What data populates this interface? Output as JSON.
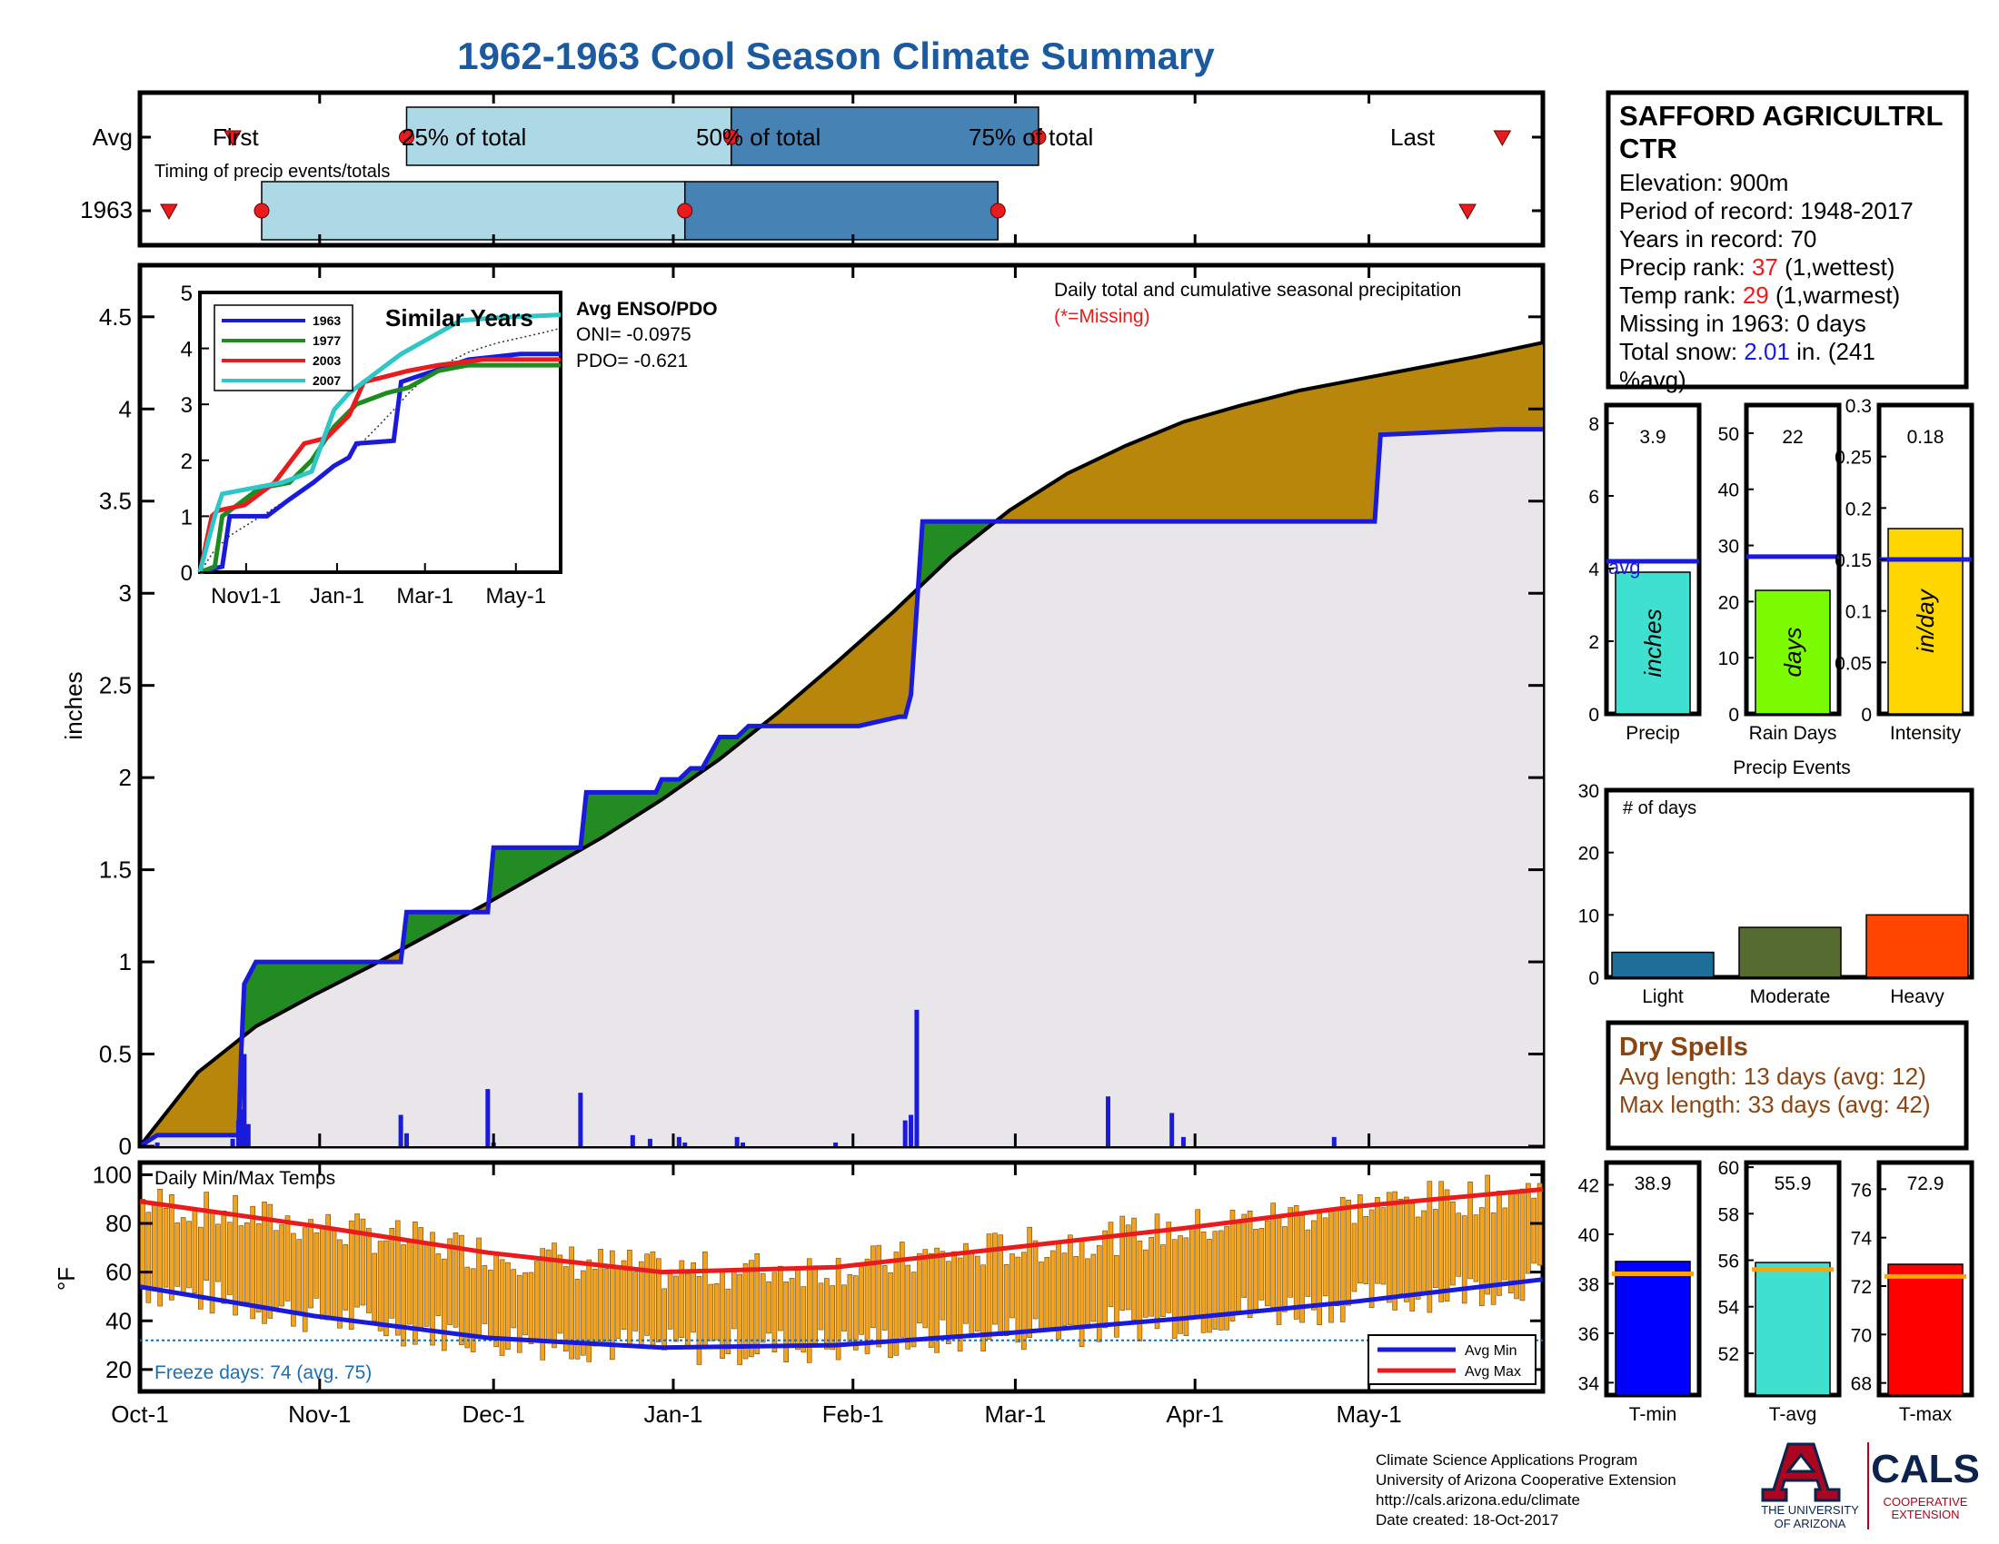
{
  "title": "1962-1963 Cool Season Climate Summary",
  "station": {
    "name_line1": "SAFFORD AGRICULTRL",
    "name_line2": "CTR",
    "elevation": "Elevation: 900m",
    "period": "Period of record: 1948-2017",
    "years": "Years in record: 70",
    "precip_rank_label": "Precip rank: ",
    "precip_rank_value": "37",
    "precip_rank_suffix": " (1,wettest)",
    "temp_rank_label": "Temp rank: ",
    "temp_rank_value": "29",
    "temp_rank_suffix": " (1,warmest)",
    "missing": "Missing in 1963: 0 days",
    "snow_label": "Total snow: ",
    "snow_value": "2.01",
    "snow_suffix": " in. (241",
    "snow_line2": "%avg)"
  },
  "timing": {
    "row_avg": "Avg",
    "row_year": "1963",
    "caption": "Timing of precip events/totals",
    "first_label": "First",
    "p25_label": "25% of total",
    "p50_label": "50% of total",
    "p75_label": "75% of total",
    "last_label": "Last",
    "avg_days": {
      "first": 16,
      "p25": 46,
      "p50": 102,
      "p75": 155,
      "last": 235
    },
    "year_days": {
      "first": 5,
      "p25": 21,
      "p50": 94,
      "p75": 148,
      "last": 229
    }
  },
  "main_chart": {
    "ylabel": "inches",
    "yticks": [
      "0",
      "0.5",
      "1",
      "1.5",
      "2",
      "2.5",
      "3",
      "3.5",
      "4",
      "4.5"
    ],
    "caption_line1": "Daily total and cumulative seasonal precipitation",
    "caption_line2": "(*=Missing)"
  },
  "enso": {
    "title": "Avg ENSO/PDO",
    "oni": "ONI= -0.0975",
    "pdo": "PDO= -0.621"
  },
  "inset": {
    "title": "Similar Years",
    "xticks": [
      "Nov1-1",
      "Jan-1",
      "Mar-1",
      "May-1"
    ],
    "yticks": [
      "0",
      "1",
      "2",
      "3",
      "4",
      "5"
    ],
    "legend": [
      {
        "name": "1963",
        "color": "#1a1adb"
      },
      {
        "name": "1977",
        "color": "#1f8a1f"
      },
      {
        "name": "2003",
        "color": "#e81c1c"
      },
      {
        "name": "2007",
        "color": "#2ec6c6"
      }
    ]
  },
  "temp_chart": {
    "title": "Daily Min/Max Temps",
    "ylabel": "°F",
    "yticks": [
      "20",
      "40",
      "60",
      "80",
      "100"
    ],
    "freeze": "Freeze days: 74 (avg. 75)",
    "legend_min": "Avg Min",
    "legend_max": "Avg Max"
  },
  "xaxis_months": [
    "Oct-1",
    "Nov-1",
    "Dec-1",
    "Jan-1",
    "Feb-1",
    "Mar-1",
    "Apr-1",
    "May-1"
  ],
  "side_bars": {
    "precip": {
      "label": "Precip",
      "unit": "inches",
      "value": 3.9,
      "value_text": "3.9",
      "avg": 4.2,
      "avg_label": "avg",
      "yticks": [
        "0",
        "2",
        "4",
        "6",
        "8"
      ],
      "color": "#3ee0d0"
    },
    "raindays": {
      "label": "Rain Days",
      "unit": "days",
      "value": 22,
      "value_text": "22",
      "avg": 28,
      "yticks": [
        "0",
        "10",
        "20",
        "30",
        "40",
        "50"
      ],
      "color": "#7cfc00"
    },
    "intensity": {
      "label": "Intensity",
      "unit": "in/day",
      "value": 0.18,
      "value_text": "0.18",
      "avg": 0.15,
      "yticks": [
        "0",
        "0.05",
        "0.1",
        "0.15",
        "0.2",
        "0.25",
        "0.3"
      ],
      "color": "#ffd700"
    }
  },
  "events": {
    "title": "Precip Events",
    "caption": "# of days",
    "yticks": [
      "0",
      "10",
      "20",
      "30"
    ],
    "bars": [
      {
        "label": "Light",
        "value": 4,
        "color": "#1e6e9a"
      },
      {
        "label": "Moderate",
        "value": 8,
        "color": "#556b2f"
      },
      {
        "label": "Heavy",
        "value": 10,
        "color": "#ff4500"
      }
    ]
  },
  "dry_spells": {
    "title": "Dry Spells",
    "avg_len": "Avg length: 13 days (avg: 12)",
    "max_len": "Max length: 33 days (avg: 42)"
  },
  "temp_bars": {
    "tmin": {
      "label": "T-min",
      "value": 38.9,
      "value_text": "38.9",
      "avg": 38.4,
      "yticks": [
        "34",
        "36",
        "38",
        "40",
        "42"
      ],
      "ymin": 33.5,
      "ymax": 42.9,
      "color": "#0000ff"
    },
    "tavg": {
      "label": "T-avg",
      "value": 55.9,
      "value_text": "55.9",
      "avg": 55.6,
      "yticks": [
        "52",
        "54",
        "56",
        "58",
        "60"
      ],
      "ymin": 50.2,
      "ymax": 60.2,
      "color": "#40e0d0"
    },
    "tmax": {
      "label": "T-max",
      "value": 72.9,
      "value_text": "72.9",
      "avg": 72.4,
      "yticks": [
        "68",
        "70",
        "72",
        "74",
        "76"
      ],
      "ymin": 67.5,
      "ymax": 77.1,
      "color": "#ff0000"
    }
  },
  "footer": {
    "line1": "Climate Science Applications Program",
    "line2": "University of Arizona Cooperative Extension",
    "line3": "http://cals.arizona.edu/climate",
    "line4": " Date created: 18-Oct-2017",
    "ua_line1": "THE UNIVERSITY",
    "ua_line2": "OF ARIZONA",
    "cals": "CALS",
    "cals_sub1": "COOPERATIVE",
    "cals_sub2": "EXTENSION"
  },
  "chart_data": [
    {
      "type": "area",
      "title": "Daily total and cumulative seasonal precipitation",
      "ylabel": "inches",
      "ylim": [
        0,
        4.78
      ],
      "xlim_days": [
        0,
        242
      ],
      "series": [
        {
          "name": "1963",
          "color": "#1a1adb",
          "x": [
            0,
            3,
            17,
            17.5,
            18,
            20,
            45,
            46,
            60,
            61,
            76,
            77,
            89,
            90,
            93,
            95,
            97,
            100,
            103,
            105,
            124,
            131,
            132,
            133,
            135,
            183,
            213,
            214,
            235,
            242
          ],
          "y": [
            0,
            0.06,
            0.06,
            0.53,
            0.88,
            1.0,
            1.0,
            1.27,
            1.27,
            1.62,
            1.62,
            1.92,
            1.92,
            1.99,
            1.99,
            2.05,
            2.05,
            2.22,
            2.22,
            2.28,
            2.28,
            2.33,
            2.33,
            2.45,
            3.39,
            3.39,
            3.39,
            3.86,
            3.89,
            3.89
          ]
        }
      ],
      "avg_cumulative": {
        "x": [
          0,
          10,
          20,
          30,
          40,
          50,
          60,
          70,
          80,
          90,
          100,
          110,
          120,
          130,
          140,
          150,
          160,
          170,
          180,
          190,
          200,
          210,
          220,
          230,
          242
        ],
        "y": [
          0,
          0.4,
          0.65,
          0.82,
          0.98,
          1.15,
          1.32,
          1.5,
          1.68,
          1.88,
          2.1,
          2.35,
          2.62,
          2.9,
          3.2,
          3.45,
          3.65,
          3.8,
          3.93,
          4.02,
          4.1,
          4.16,
          4.22,
          4.28,
          4.36
        ]
      },
      "daily_totals": [
        {
          "x": 3,
          "y": 0.02
        },
        {
          "x": 16,
          "y": 0.04
        },
        {
          "x": 17,
          "y": 0.14
        },
        {
          "x": 17.5,
          "y": 0.2
        },
        {
          "x": 18,
          "y": 0.5
        },
        {
          "x": 18.7,
          "y": 0.12
        },
        {
          "x": 45,
          "y": 0.17
        },
        {
          "x": 46,
          "y": 0.07
        },
        {
          "x": 60,
          "y": 0.31
        },
        {
          "x": 61,
          "y": 0.02
        },
        {
          "x": 76,
          "y": 0.29
        },
        {
          "x": 85,
          "y": 0.06
        },
        {
          "x": 88,
          "y": 0.04
        },
        {
          "x": 93,
          "y": 0.05
        },
        {
          "x": 94,
          "y": 0.02
        },
        {
          "x": 103,
          "y": 0.05
        },
        {
          "x": 104,
          "y": 0.02
        },
        {
          "x": 120,
          "y": 0.02
        },
        {
          "x": 132,
          "y": 0.14
        },
        {
          "x": 133,
          "y": 0.17
        },
        {
          "x": 134,
          "y": 0.74
        },
        {
          "x": 167,
          "y": 0.27
        },
        {
          "x": 178,
          "y": 0.18
        },
        {
          "x": 180,
          "y": 0.05
        },
        {
          "x": 206,
          "y": 0.05
        }
      ]
    },
    {
      "type": "line",
      "title": "Similar Years",
      "x": [
        "Nov1-1",
        "Jan-1",
        "Mar-1",
        "May-1"
      ],
      "ylim": [
        0,
        5
      ],
      "series": [
        {
          "name": "1963",
          "x": [
            0,
            15,
            20,
            45,
            60,
            76,
            90,
            100,
            105,
            130,
            135,
            180,
            215,
            242
          ],
          "y": [
            0,
            0.1,
            1.0,
            1.0,
            1.3,
            1.6,
            1.9,
            2.05,
            2.3,
            2.35,
            3.4,
            3.8,
            3.9,
            3.9
          ]
        },
        {
          "name": "1977",
          "x": [
            0,
            10,
            15,
            25,
            40,
            60,
            75,
            90,
            105,
            125,
            140,
            160,
            180,
            210,
            242
          ],
          "y": [
            0,
            0.1,
            1.0,
            1.2,
            1.5,
            1.6,
            2.0,
            2.6,
            3.0,
            3.2,
            3.3,
            3.6,
            3.7,
            3.7,
            3.7
          ]
        },
        {
          "name": "2003",
          "x": [
            0,
            8,
            12,
            30,
            50,
            70,
            85,
            100,
            110,
            125,
            140,
            160,
            190,
            242
          ],
          "y": [
            0,
            1.0,
            1.1,
            1.2,
            1.6,
            2.3,
            2.4,
            2.8,
            3.4,
            3.5,
            3.6,
            3.7,
            3.8,
            3.8
          ]
        },
        {
          "name": "2007",
          "x": [
            0,
            10,
            15,
            35,
            55,
            75,
            90,
            100,
            115,
            135,
            155,
            175,
            200,
            242
          ],
          "y": [
            0,
            1.0,
            1.4,
            1.5,
            1.6,
            1.8,
            2.9,
            3.2,
            3.5,
            3.9,
            4.2,
            4.5,
            4.55,
            4.6
          ]
        }
      ]
    },
    {
      "type": "bar",
      "title": "Daily Min/Max Temps",
      "ylabel": "°F",
      "ylim": [
        11,
        105
      ],
      "avg_min": {
        "x": [
          0,
          30,
          60,
          90,
          120,
          150,
          180,
          210,
          242
        ],
        "y": [
          54,
          42,
          33,
          29,
          30,
          35,
          41,
          48,
          57
        ]
      },
      "avg_max": {
        "x": [
          0,
          30,
          60,
          90,
          120,
          150,
          180,
          210,
          242
        ],
        "y": [
          89,
          79,
          68,
          60,
          62,
          70,
          78,
          87,
          94
        ]
      },
      "freeze_line": 32
    },
    {
      "type": "bar",
      "categories": [
        "Precip",
        "Rain Days",
        "Intensity"
      ],
      "values": [
        3.9,
        22,
        0.18
      ],
      "averages": [
        4.2,
        28,
        0.15
      ]
    },
    {
      "type": "bar",
      "title": "Precip Events",
      "categories": [
        "Light",
        "Moderate",
        "Heavy"
      ],
      "values": [
        4,
        8,
        10
      ],
      "ylim": [
        0,
        30
      ]
    },
    {
      "type": "bar",
      "categories": [
        "T-min",
        "T-avg",
        "T-max"
      ],
      "values": [
        38.9,
        55.9,
        72.9
      ],
      "averages": [
        38.4,
        55.6,
        72.4
      ]
    }
  ]
}
